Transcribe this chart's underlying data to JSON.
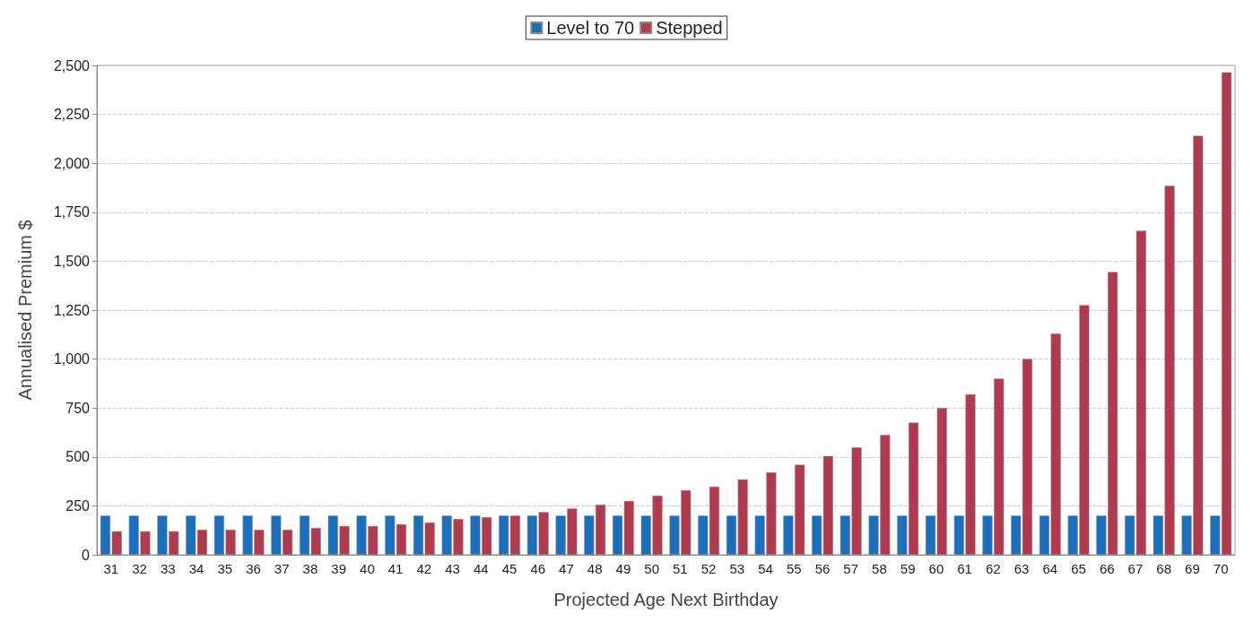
{
  "chart_data": {
    "type": "bar",
    "xlabel": "Projected Age Next Birthday",
    "ylabel": "Annualised Premium $",
    "categories": [
      "31",
      "32",
      "33",
      "34",
      "35",
      "36",
      "37",
      "38",
      "39",
      "40",
      "41",
      "42",
      "43",
      "44",
      "45",
      "46",
      "47",
      "48",
      "49",
      "50",
      "51",
      "52",
      "53",
      "54",
      "55",
      "56",
      "57",
      "58",
      "59",
      "60",
      "61",
      "62",
      "63",
      "64",
      "65",
      "66",
      "67",
      "68",
      "69",
      "70"
    ],
    "series": [
      {
        "name": "Level to 70",
        "color": "#1a6fbf",
        "values": [
          200,
          200,
          200,
          200,
          200,
          200,
          200,
          200,
          200,
          200,
          200,
          200,
          200,
          200,
          200,
          200,
          200,
          200,
          200,
          200,
          200,
          200,
          200,
          200,
          200,
          200,
          200,
          200,
          200,
          200,
          200,
          200,
          200,
          200,
          200,
          200,
          200,
          200,
          200,
          200
        ]
      },
      {
        "name": "Stepped",
        "color": "#b23a4e",
        "values": [
          120,
          120,
          120,
          128,
          128,
          128,
          128,
          137,
          147,
          147,
          156,
          165,
          183,
          192,
          200,
          218,
          236,
          256,
          275,
          302,
          330,
          348,
          385,
          421,
          460,
          505,
          548,
          612,
          675,
          750,
          820,
          900,
          1000,
          1130,
          1275,
          1445,
          1655,
          1885,
          2140,
          2465
        ]
      }
    ],
    "ylim": [
      0,
      2500
    ],
    "yticks": [
      {
        "value": 0,
        "label": "0"
      },
      {
        "value": 250,
        "label": "250"
      },
      {
        "value": 500,
        "label": "500"
      },
      {
        "value": 750,
        "label": "750"
      },
      {
        "value": 1000,
        "label": "1,000"
      },
      {
        "value": 1250,
        "label": "1,250"
      },
      {
        "value": 1500,
        "label": "1,500"
      },
      {
        "value": 1750,
        "label": "1,750"
      },
      {
        "value": 2000,
        "label": "2,000"
      },
      {
        "value": 2250,
        "label": "2,250"
      },
      {
        "value": 2500,
        "label": "2,500"
      }
    ],
    "grid": "y",
    "legend": "top"
  }
}
